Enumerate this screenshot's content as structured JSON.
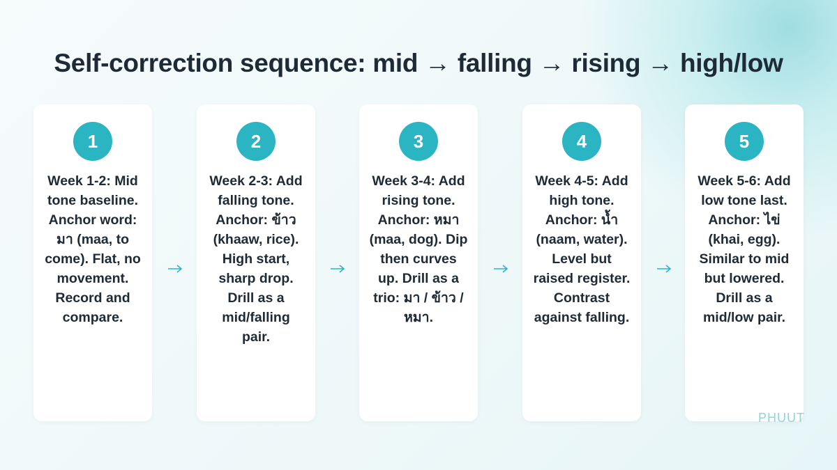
{
  "title": "Self-correction sequence: mid → falling → rising → high/low",
  "steps": [
    {
      "number": "1",
      "text": "Week 1-2: Mid tone baseline. Anchor word: มา (maa, to come). Flat, no movement. Record and compare."
    },
    {
      "number": "2",
      "text": "Week 2-3: Add falling tone. Anchor: ข้าว (khaaw, rice). High start, sharp drop. Drill as a mid/falling pair."
    },
    {
      "number": "3",
      "text": "Week 3-4: Add rising tone. Anchor: หมา (maa, dog). Dip then curves up. Drill as a trio: มา / ข้าว / หมา."
    },
    {
      "number": "4",
      "text": "Week 4-5: Add high tone. Anchor: น้ำ (naam, water). Level but raised register. Contrast against falling."
    },
    {
      "number": "5",
      "text": "Week 5-6: Add low tone last. Anchor: ไข่ (khai, egg). Similar to mid but lowered. Drill as a mid/low pair."
    }
  ],
  "logo": "PHUUT"
}
